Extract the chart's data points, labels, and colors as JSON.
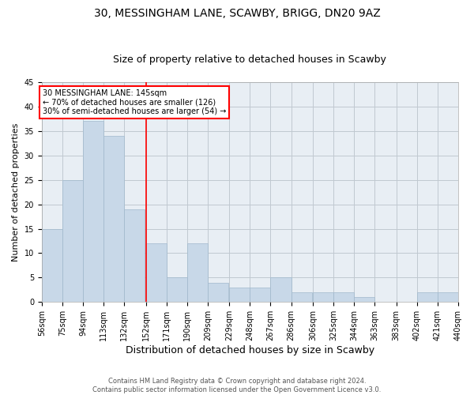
{
  "title1": "30, MESSINGHAM LANE, SCAWBY, BRIGG, DN20 9AZ",
  "title2": "Size of property relative to detached houses in Scawby",
  "xlabel": "Distribution of detached houses by size in Scawby",
  "ylabel": "Number of detached properties",
  "footer": "Contains HM Land Registry data © Crown copyright and database right 2024.\nContains public sector information licensed under the Open Government Licence v3.0.",
  "bins": [
    56,
    75,
    94,
    113,
    132,
    152,
    171,
    190,
    209,
    229,
    248,
    267,
    286,
    306,
    325,
    344,
    363,
    383,
    402,
    421,
    440
  ],
  "values": [
    15,
    25,
    37,
    34,
    19,
    12,
    5,
    12,
    4,
    3,
    3,
    5,
    2,
    2,
    2,
    1,
    0,
    0,
    2,
    2
  ],
  "bar_color": "#c8d8e8",
  "bar_edge_color": "#a0b8cc",
  "background_color": "#e8eef4",
  "red_line_x": 152,
  "annotation_text": "30 MESSINGHAM LANE: 145sqm\n← 70% of detached houses are smaller (126)\n30% of semi-detached houses are larger (54) →",
  "annotation_box_color": "white",
  "annotation_box_edge": "red",
  "ylim": [
    0,
    45
  ],
  "yticks": [
    0,
    5,
    10,
    15,
    20,
    25,
    30,
    35,
    40,
    45
  ],
  "grid_color": "#c0c8d0",
  "title_fontsize": 10,
  "subtitle_fontsize": 9,
  "axis_label_fontsize": 8,
  "tick_fontsize": 7,
  "footer_fontsize": 6
}
